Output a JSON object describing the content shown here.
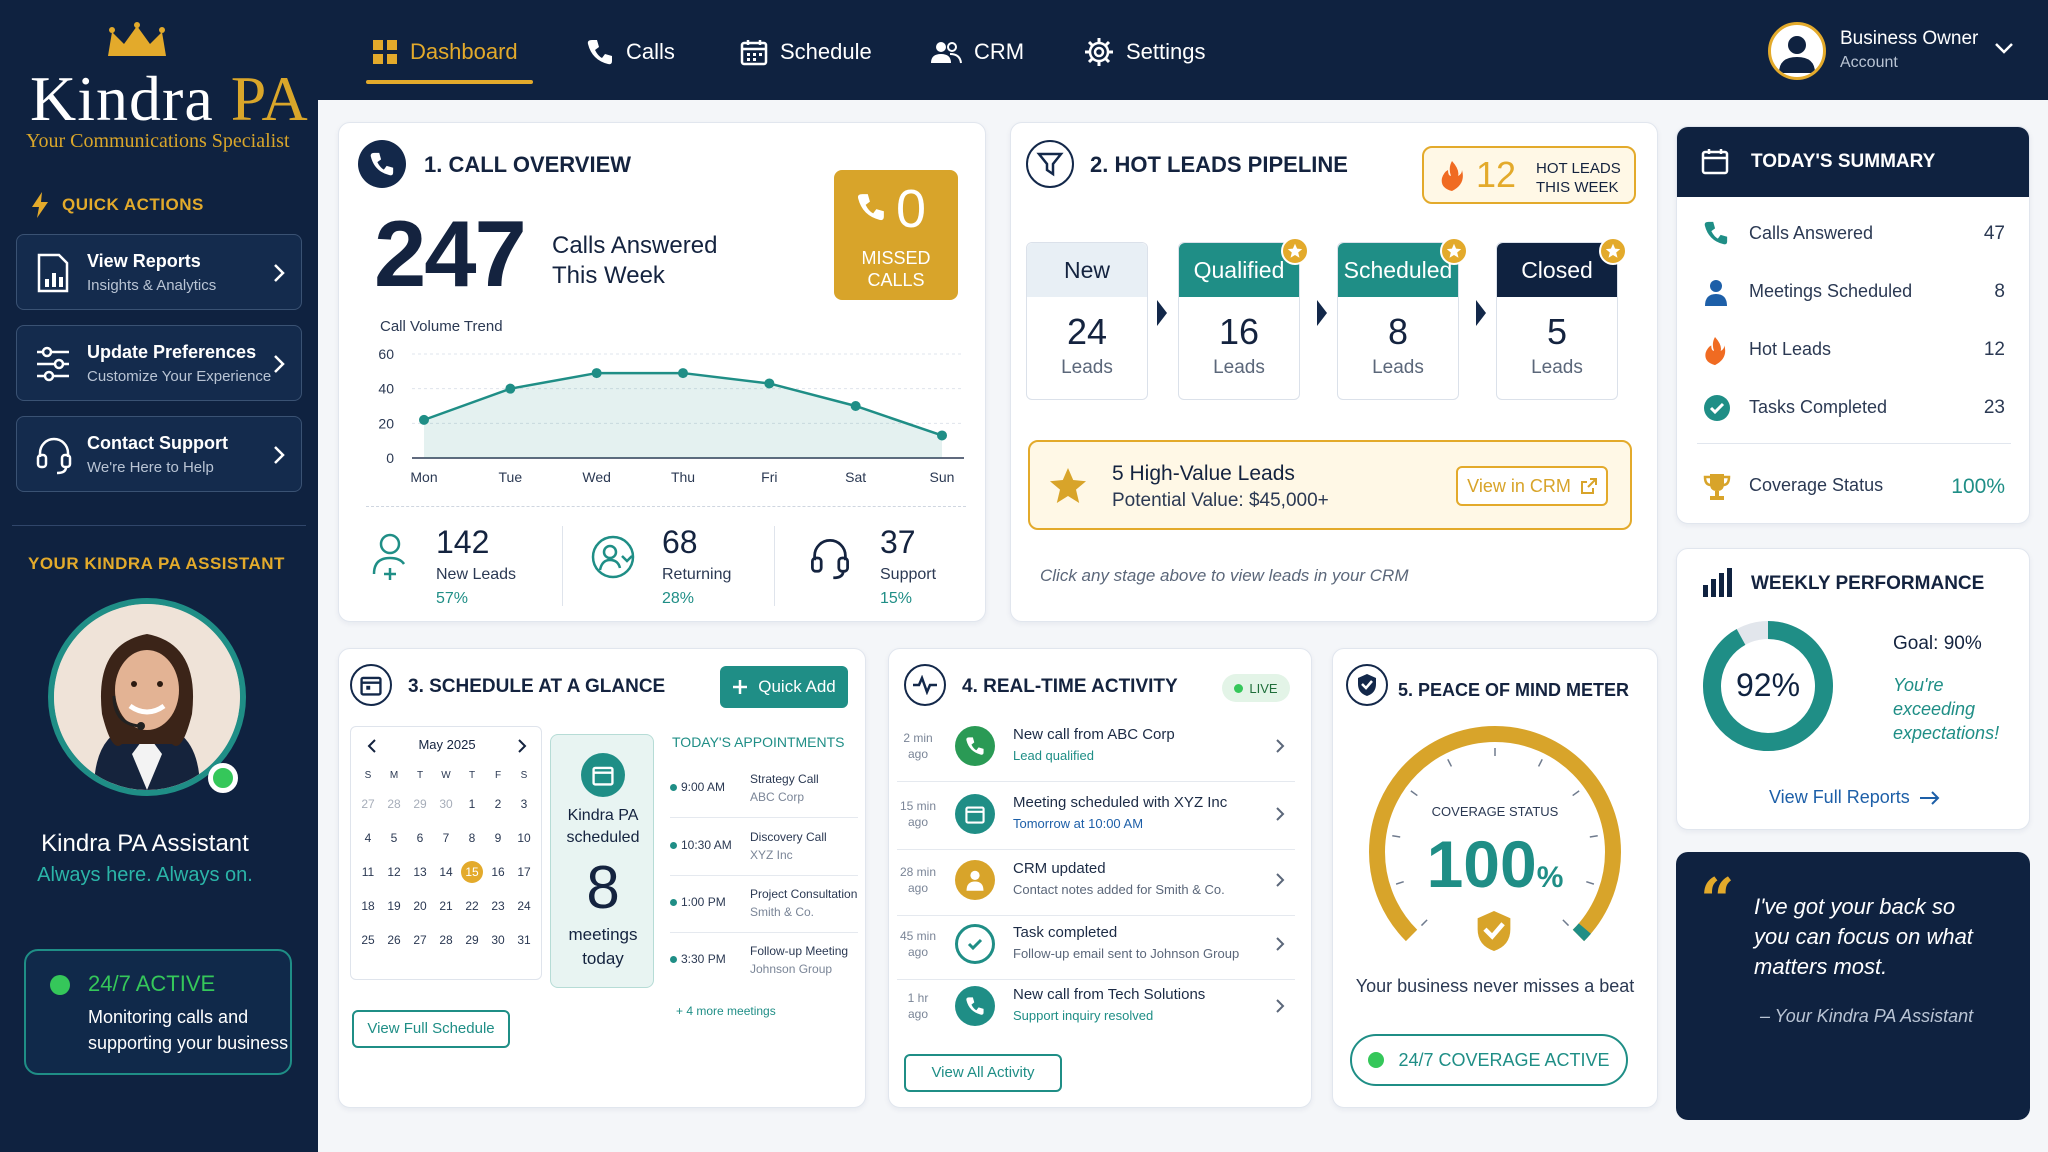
{
  "brand": {
    "logo_main": "Kindra",
    "logo_accent": "PA",
    "tagline": "Your Communications Specialist"
  },
  "sidebar": {
    "quick_actions_title": "QUICK ACTIONS",
    "items": [
      {
        "title": "View Reports",
        "subtitle": "Insights & Analytics"
      },
      {
        "title": "Update Preferences",
        "subtitle": "Customize Your Experience"
      },
      {
        "title": "Contact Support",
        "subtitle": "We're Here to Help"
      }
    ],
    "assistant_section_title": "YOUR KINDRA PA ASSISTANT",
    "assistant_name": "Kindra PA Assistant",
    "assistant_tagline": "Always here. Always on.",
    "active_title": "24/7 ACTIVE",
    "active_text_1": "Monitoring calls and",
    "active_text_2": "supporting your business"
  },
  "nav": {
    "items": [
      "Dashboard",
      "Calls",
      "Schedule",
      "CRM",
      "Settings"
    ],
    "active": "Dashboard"
  },
  "user": {
    "name": "Business Owner",
    "role": "Account"
  },
  "call_overview": {
    "title": "1. CALL OVERVIEW",
    "calls_answered": "247",
    "calls_answered_label_1": "Calls Answered",
    "calls_answered_label_2": "This Week",
    "missed_value": "0",
    "missed_label_1": "MISSED",
    "missed_label_2": "CALLS",
    "trend_title": "Call Volume Trend",
    "stats": [
      {
        "value": "142",
        "label": "New Leads",
        "pct": "57%"
      },
      {
        "value": "68",
        "label": "Returning",
        "pct": "28%"
      },
      {
        "value": "37",
        "label": "Support",
        "pct": "15%"
      }
    ]
  },
  "chart_data": {
    "type": "area",
    "title": "Call Volume Trend",
    "categories": [
      "Mon",
      "Tue",
      "Wed",
      "Thu",
      "Fri",
      "Sat",
      "Sun"
    ],
    "values": [
      22,
      40,
      49,
      49,
      43,
      30,
      13
    ],
    "yticks": [
      "0",
      "20",
      "40",
      "60"
    ],
    "ylim": [
      0,
      60
    ],
    "grid": true,
    "color": "#1f8e86"
  },
  "pipeline": {
    "title": "2. HOT LEADS PIPELINE",
    "hot_count": "12",
    "hot_label_1": "HOT LEADS",
    "hot_label_2": "THIS WEEK",
    "stages": [
      {
        "name": "New",
        "count": "24",
        "unit": "Leads"
      },
      {
        "name": "Qualified",
        "count": "16",
        "unit": "Leads"
      },
      {
        "name": "Scheduled",
        "count": "8",
        "unit": "Leads"
      },
      {
        "name": "Closed",
        "count": "5",
        "unit": "Leads"
      }
    ],
    "hv_title": "5 High-Value Leads",
    "hv_value": "Potential Value: $45,000+",
    "hv_button": "View in CRM",
    "hint": "Click any stage above to view leads in your CRM"
  },
  "summary": {
    "title": "TODAY'S SUMMARY",
    "rows": [
      {
        "label": "Calls Answered",
        "value": "47"
      },
      {
        "label": "Meetings Scheduled",
        "value": "8"
      },
      {
        "label": "Hot Leads",
        "value": "12"
      },
      {
        "label": "Tasks Completed",
        "value": "23"
      }
    ],
    "coverage_label": "Coverage Status",
    "coverage_value": "100%"
  },
  "weekly": {
    "title": "WEEKLY PERFORMANCE",
    "percent": "92%",
    "percent_value": 0.92,
    "goal": "Goal: 90%",
    "message_1": "You're",
    "message_2": "exceeding",
    "message_3": "expectations!",
    "link": "View Full Reports"
  },
  "schedule": {
    "title": "3. SCHEDULE AT A GLANCE",
    "quick_add": "Quick Add",
    "month": "May 2025",
    "weekdays": [
      "S",
      "M",
      "T",
      "W",
      "T",
      "F",
      "S"
    ],
    "weeks": [
      [
        "27",
        "28",
        "29",
        "30",
        "1",
        "2",
        "3"
      ],
      [
        "4",
        "5",
        "6",
        "7",
        "8",
        "9",
        "10"
      ],
      [
        "11",
        "12",
        "13",
        "14",
        "15",
        "16",
        "17"
      ],
      [
        "18",
        "19",
        "20",
        "21",
        "22",
        "23",
        "24"
      ],
      [
        "25",
        "26",
        "27",
        "28",
        "29",
        "30",
        "31"
      ]
    ],
    "selected_day": "15",
    "scheduled_label_1": "Kindra PA",
    "scheduled_label_2": "scheduled",
    "scheduled_count": "8",
    "scheduled_label_3": "meetings",
    "scheduled_label_4": "today",
    "appointments_title": "TODAY'S APPOINTMENTS",
    "appointments": [
      {
        "time": "9:00 AM",
        "name": "Strategy Call",
        "company": "ABC Corp"
      },
      {
        "time": "10:30 AM",
        "name": "Discovery Call",
        "company": "XYZ Inc"
      },
      {
        "time": "1:00 PM",
        "name": "Project Consultation",
        "company": "Smith & Co."
      },
      {
        "time": "3:30 PM",
        "name": "Follow-up Meeting",
        "company": "Johnson Group"
      }
    ],
    "more": "+ 4 more meetings",
    "view_button": "View Full Schedule"
  },
  "activity": {
    "title": "4. REAL-TIME ACTIVITY",
    "live": "LIVE",
    "items": [
      {
        "ago_1": "2 min",
        "ago_2": "ago",
        "title": "New call from ABC Corp",
        "detail": "Lead qualified",
        "icon": "phone-icon"
      },
      {
        "ago_1": "15 min",
        "ago_2": "ago",
        "title": "Meeting scheduled with XYZ Inc",
        "detail": "Tomorrow at 10:00 AM",
        "icon": "calendar-icon"
      },
      {
        "ago_1": "28 min",
        "ago_2": "ago",
        "title": "CRM updated",
        "detail": "Contact notes added for Smith & Co.",
        "icon": "user-icon"
      },
      {
        "ago_1": "45 min",
        "ago_2": "ago",
        "title": "Task completed",
        "detail": "Follow-up email sent to Johnson Group",
        "icon": "check-icon"
      },
      {
        "ago_1": "1 hr ago",
        "ago_2": "",
        "title": "New call from Tech Solutions",
        "detail": "Support inquiry resolved",
        "icon": "phone-icon"
      }
    ],
    "view_button": "View All Activity"
  },
  "peace": {
    "title": "5. PEACE OF MIND METER",
    "gauge_label": "COVERAGE STATUS",
    "gauge_value": "100",
    "gauge_unit": "%",
    "gauge_fraction": 1.0,
    "tagline": "Your business never misses a beat",
    "badge": "24/7 COVERAGE ACTIVE"
  },
  "quote": {
    "mark": "“",
    "line_1": "I've got your back so",
    "line_2": "you can focus on what",
    "line_3": "matters most.",
    "author": "– Your Kindra PA Assistant"
  },
  "colors": {
    "navy": "#0f2240",
    "gold": "#e3aa2b",
    "teal": "#1f8e86",
    "green": "#35c75a"
  }
}
